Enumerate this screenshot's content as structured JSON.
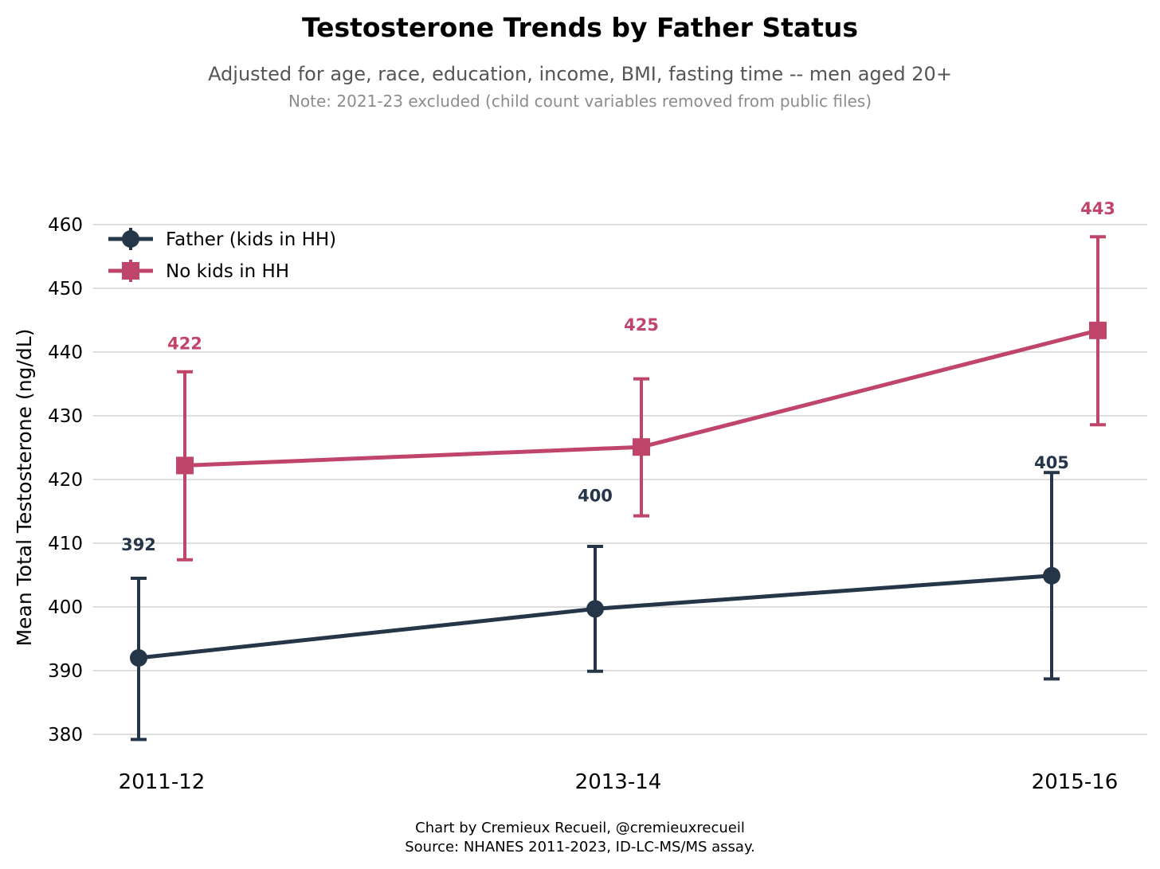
{
  "chart_data": {
    "type": "line",
    "title": "Testosterone Trends by Father Status",
    "subtitle": "Adjusted for age, race, education, income, BMI, fasting time -- men aged 20+",
    "note": "Note: 2021-23 excluded (child count variables removed from public files)",
    "xlabel": "",
    "ylabel": "Mean Total Testosterone (ng/dL)",
    "categories": [
      "2011-12",
      "2013-14",
      "2015-16"
    ],
    "ylim": [
      377,
      463
    ],
    "yticks": [
      380,
      390,
      400,
      410,
      420,
      430,
      440,
      450,
      460
    ],
    "grid": "horizontal",
    "legend_position": "top-left",
    "series": [
      {
        "name": "Father (kids in HH)",
        "marker": "circle",
        "color": "#253649",
        "values": [
          392.0,
          399.7,
          404.9
        ],
        "error_low": [
          379.2,
          389.9,
          388.7
        ],
        "error_high": [
          404.5,
          409.5,
          421.1
        ],
        "data_labels": [
          "392",
          "400",
          "405"
        ]
      },
      {
        "name": "No kids in HH",
        "marker": "square",
        "color": "#c0456a",
        "values": [
          422.2,
          425.1,
          443.4
        ],
        "error_low": [
          407.4,
          414.3,
          428.6
        ],
        "error_high": [
          436.9,
          435.8,
          458.1
        ],
        "data_labels": [
          "422",
          "425",
          "443"
        ]
      }
    ]
  },
  "footer": {
    "line1": "Chart by Cremieux Recueil, @cremieuxrecueil",
    "line2": "Source: NHANES 2011-2023, ID-LC-MS/MS assay."
  }
}
